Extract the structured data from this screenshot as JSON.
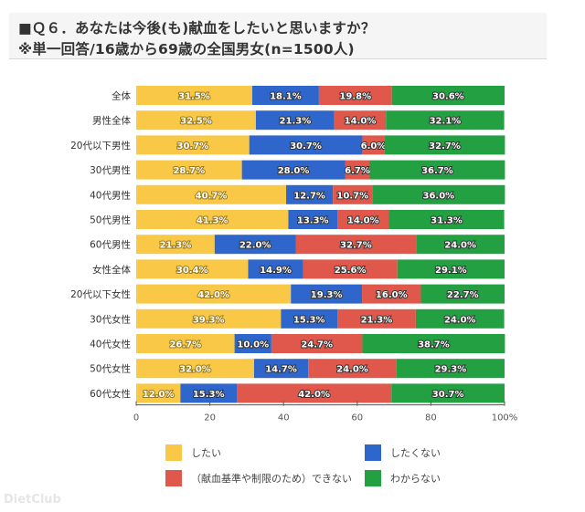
{
  "header": {
    "title": "■Ｑ６．あなたは今後(も)献血をしたいと思いますか？",
    "subtitle": "※単一回答/16歳から69歳の全国男女(n=1500人)"
  },
  "watermark": "DietClub",
  "chart_data": {
    "type": "bar",
    "orientation": "horizontal",
    "stacked": true,
    "title": "Ｑ６．あなたは今後(も)献血をしたいと思いますか？",
    "subtitle": "※単一回答/16歳から69歳の全国男女(n=1500人)",
    "xlabel": "",
    "ylabel": "",
    "xlim": [
      0,
      100
    ],
    "x_ticks": [
      "0",
      "20",
      "40",
      "60",
      "80",
      "100%"
    ],
    "x_tick_values": [
      0,
      20,
      40,
      60,
      80,
      100
    ],
    "grid": false,
    "legend_position": "bottom",
    "categories": [
      "全体",
      "男性全体",
      "20代以下男性",
      "30代男性",
      "40代男性",
      "50代男性",
      "60代男性",
      "女性全体",
      "20代以下女性",
      "30代女性",
      "40代女性",
      "50代女性",
      "60代女性"
    ],
    "series": [
      {
        "name": "したい",
        "color": "#f9c846",
        "values": [
          31.5,
          32.5,
          30.7,
          28.7,
          40.7,
          41.3,
          21.3,
          30.4,
          42.0,
          39.3,
          26.7,
          32.0,
          12.0
        ]
      },
      {
        "name": "したくない",
        "color": "#2e66cc",
        "values": [
          18.1,
          21.3,
          30.7,
          28.0,
          12.7,
          13.3,
          22.0,
          14.9,
          19.3,
          15.3,
          10.0,
          14.7,
          15.3
        ]
      },
      {
        "name": "（献血基準や制限のため）できない",
        "color": "#e0584c",
        "values": [
          19.8,
          14.0,
          6.0,
          6.7,
          10.7,
          14.0,
          32.7,
          25.6,
          16.0,
          21.3,
          24.7,
          24.0,
          42.0
        ]
      },
      {
        "name": "わからない",
        "color": "#23a042",
        "values": [
          30.6,
          32.1,
          32.7,
          36.7,
          36.0,
          31.3,
          24.0,
          29.1,
          22.7,
          24.0,
          38.7,
          29.3,
          30.7
        ]
      }
    ],
    "legend": [
      {
        "label": "したい",
        "color": "#f9c846"
      },
      {
        "label": "したくない",
        "color": "#2e66cc"
      },
      {
        "label": "（献血基準や制限のため）できない",
        "color": "#e0584c"
      },
      {
        "label": "わからない",
        "color": "#23a042"
      }
    ]
  }
}
